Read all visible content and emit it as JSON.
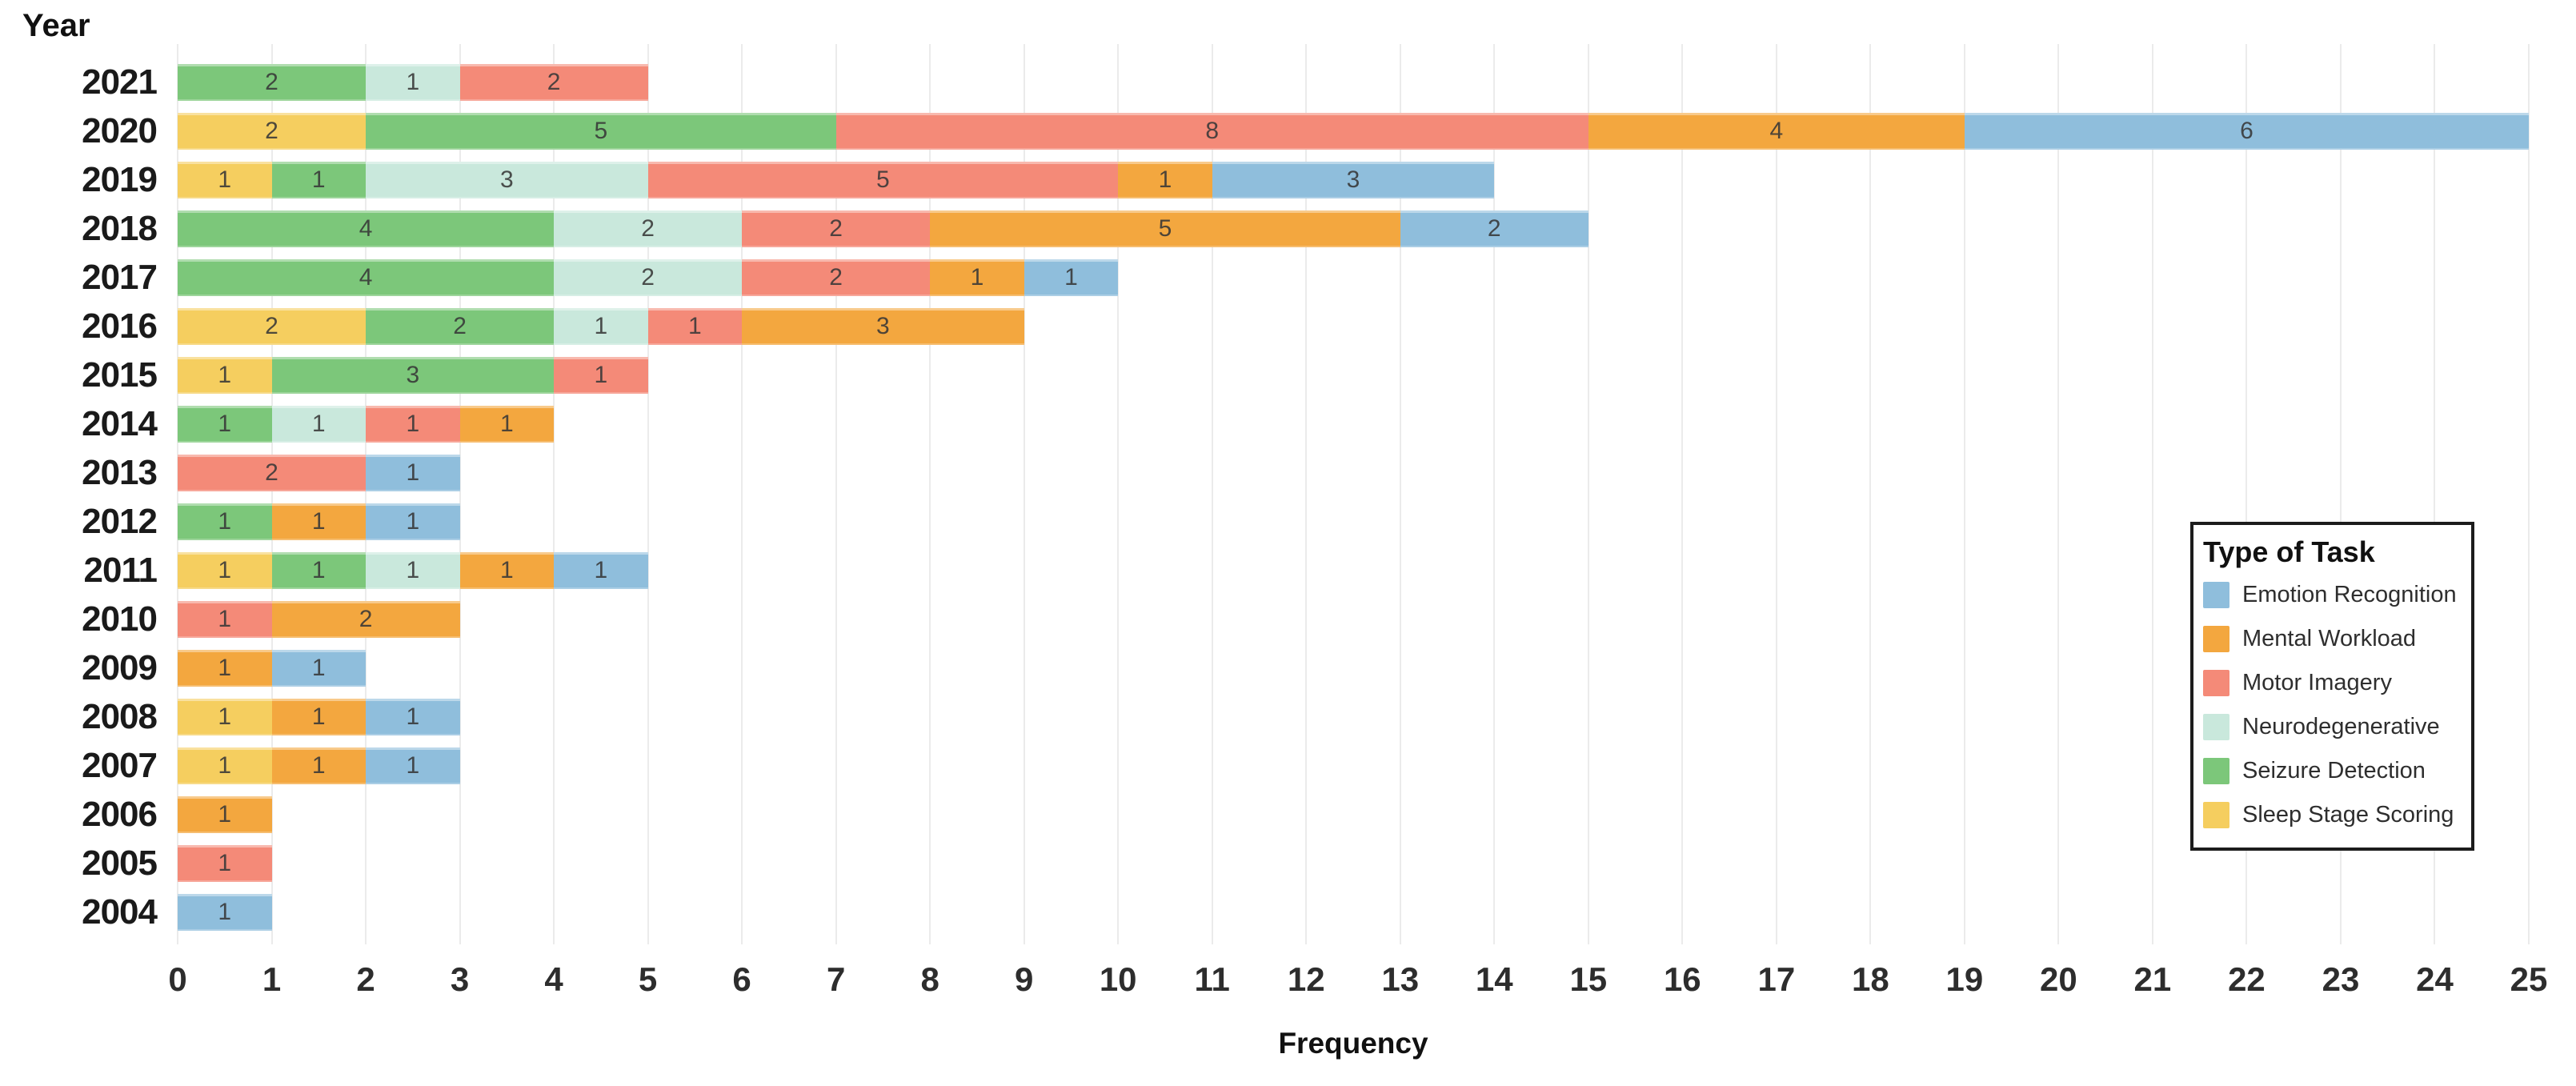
{
  "axes": {
    "y_title": "Year",
    "x_title": "Frequency"
  },
  "legend": {
    "title": "Type of Task",
    "items": [
      {
        "label": "Emotion Recognition",
        "color": "#8FBEDC"
      },
      {
        "label": "Mental Workload",
        "color": "#F3A73F"
      },
      {
        "label": "Motor Imagery",
        "color": "#F48A78"
      },
      {
        "label": "Neurodegenerative",
        "color": "#C9E8DC"
      },
      {
        "label": "Seizure Detection",
        "color": "#7CC77A"
      },
      {
        "label": "Sleep Stage Scoring",
        "color": "#F5CE5F"
      }
    ]
  },
  "chart_data": {
    "type": "bar",
    "orientation": "horizontal",
    "stacked": true,
    "grid": true,
    "value_labels": true,
    "legend_position": "right-middle",
    "xlabel": "Frequency",
    "ylabel": "Year",
    "xlim": [
      0,
      25
    ],
    "x_ticks": [
      0,
      1,
      2,
      3,
      4,
      5,
      6,
      7,
      8,
      9,
      10,
      11,
      12,
      13,
      14,
      15,
      16,
      17,
      18,
      19,
      20,
      21,
      22,
      23,
      24,
      25
    ],
    "categories": [
      "2021",
      "2020",
      "2019",
      "2018",
      "2017",
      "2016",
      "2015",
      "2014",
      "2013",
      "2012",
      "2011",
      "2010",
      "2009",
      "2008",
      "2007",
      "2006",
      "2005",
      "2004"
    ],
    "stack_order": [
      "Sleep Stage Scoring",
      "Seizure Detection",
      "Neurodegenerative",
      "Motor Imagery",
      "Mental Workload",
      "Emotion Recognition"
    ],
    "series": [
      {
        "name": "Sleep Stage Scoring",
        "values": [
          0,
          2,
          1,
          0,
          0,
          2,
          1,
          0,
          0,
          0,
          1,
          0,
          0,
          1,
          1,
          0,
          0,
          0
        ]
      },
      {
        "name": "Seizure Detection",
        "values": [
          2,
          5,
          1,
          4,
          4,
          2,
          3,
          1,
          0,
          1,
          1,
          0,
          0,
          0,
          0,
          0,
          0,
          0
        ]
      },
      {
        "name": "Neurodegenerative",
        "values": [
          1,
          0,
          3,
          2,
          2,
          1,
          0,
          1,
          0,
          0,
          1,
          0,
          0,
          0,
          0,
          0,
          0,
          0
        ]
      },
      {
        "name": "Motor Imagery",
        "values": [
          2,
          8,
          5,
          2,
          2,
          1,
          1,
          1,
          2,
          0,
          0,
          1,
          0,
          0,
          0,
          0,
          1,
          0
        ]
      },
      {
        "name": "Mental Workload",
        "values": [
          0,
          4,
          1,
          5,
          1,
          3,
          0,
          1,
          0,
          1,
          1,
          2,
          1,
          1,
          1,
          1,
          0,
          0
        ]
      },
      {
        "name": "Emotion Recognition",
        "values": [
          0,
          6,
          3,
          2,
          1,
          0,
          0,
          0,
          1,
          1,
          1,
          0,
          1,
          1,
          1,
          0,
          0,
          1
        ]
      }
    ]
  }
}
